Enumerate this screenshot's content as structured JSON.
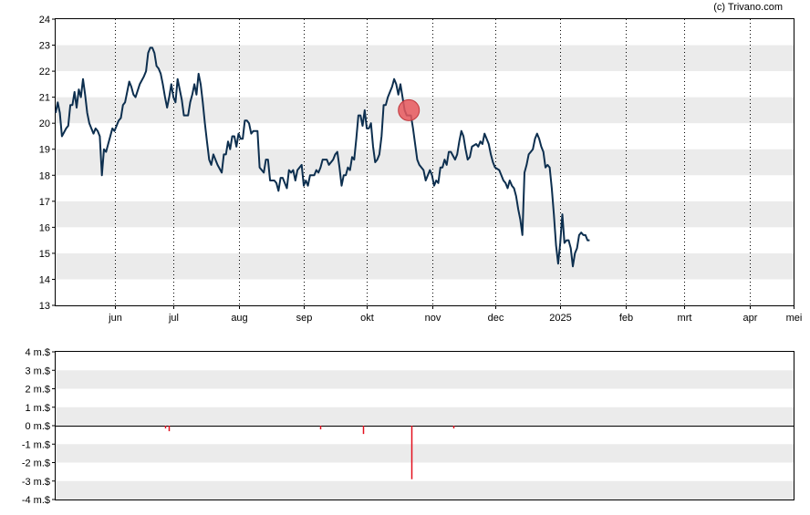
{
  "credit": "(c) Trivano.com",
  "colors": {
    "price_line": "#0d2f4f",
    "band": "#ebebeb",
    "grid": "#000000",
    "marker_fill": "#e8585d",
    "marker_stroke": "#c0383d",
    "insider_bar": "#e3101e",
    "zero_line": "#000000"
  },
  "chart_data": [
    {
      "type": "line",
      "ylim": [
        13,
        24
      ],
      "y_ticks": [
        "13",
        "14",
        "15",
        "16",
        "17",
        "18",
        "19",
        "20",
        "21",
        "22",
        "23",
        "24"
      ],
      "x_range_days": [
        0,
        351
      ],
      "x_ticks": [
        {
          "label": "jun",
          "day": 28
        },
        {
          "label": "jul",
          "day": 56
        },
        {
          "label": "aug",
          "day": 87
        },
        {
          "label": "sep",
          "day": 118
        },
        {
          "label": "okt",
          "day": 148
        },
        {
          "label": "nov",
          "day": 179
        },
        {
          "label": "dec",
          "day": 209
        },
        {
          "label": "2025",
          "day": 240
        },
        {
          "label": "feb",
          "day": 271
        },
        {
          "label": "mrt",
          "day": 299
        },
        {
          "label": "apr",
          "day": 330
        },
        {
          "label": "mei",
          "day": 351
        }
      ],
      "grid": "vertical dotted at month ticks, alternating horizontal bands",
      "series": [
        {
          "points": [
            [
              0,
              20.4
            ],
            [
              1,
              20.8
            ],
            [
              2,
              20.4
            ],
            [
              3,
              19.5
            ],
            [
              5,
              19.8
            ],
            [
              6,
              19.9
            ],
            [
              7,
              20.7
            ],
            [
              8,
              20.7
            ],
            [
              9,
              21.2
            ],
            [
              10,
              20.6
            ],
            [
              11,
              21.3
            ],
            [
              12,
              21.0
            ],
            [
              13,
              21.7
            ],
            [
              14,
              21.1
            ],
            [
              15,
              20.4
            ],
            [
              16,
              20.0
            ],
            [
              18,
              19.6
            ],
            [
              19,
              19.8
            ],
            [
              20,
              19.7
            ],
            [
              21,
              19.5
            ],
            [
              22,
              18.0
            ],
            [
              23,
              19.0
            ],
            [
              24,
              18.9
            ],
            [
              25,
              19.2
            ],
            [
              26,
              19.5
            ],
            [
              27,
              19.8
            ],
            [
              28,
              19.7
            ],
            [
              30,
              20.1
            ],
            [
              31,
              20.2
            ],
            [
              32,
              20.7
            ],
            [
              33,
              20.8
            ],
            [
              34,
              21.2
            ],
            [
              35,
              21.6
            ],
            [
              36,
              21.4
            ],
            [
              37,
              21.1
            ],
            [
              38,
              21.0
            ],
            [
              40,
              21.5
            ],
            [
              42,
              21.8
            ],
            [
              43,
              22.0
            ],
            [
              44,
              22.7
            ],
            [
              45,
              22.9
            ],
            [
              46,
              22.9
            ],
            [
              47,
              22.7
            ],
            [
              48,
              22.2
            ],
            [
              49,
              22.1
            ],
            [
              50,
              21.9
            ],
            [
              51,
              21.5
            ],
            [
              52,
              21.0
            ],
            [
              53,
              20.6
            ],
            [
              54,
              21.0
            ],
            [
              55,
              21.5
            ],
            [
              56,
              21.0
            ],
            [
              57,
              20.8
            ],
            [
              58,
              21.7
            ],
            [
              60,
              20.9
            ],
            [
              61,
              20.3
            ],
            [
              63,
              20.3
            ],
            [
              64,
              20.8
            ],
            [
              65,
              21.1
            ],
            [
              66,
              21.5
            ],
            [
              67,
              21.1
            ],
            [
              68,
              21.9
            ],
            [
              69,
              21.5
            ],
            [
              70,
              20.8
            ],
            [
              71,
              20.0
            ],
            [
              72,
              19.3
            ],
            [
              73,
              18.6
            ],
            [
              74,
              18.4
            ],
            [
              75,
              18.8
            ],
            [
              77,
              18.4
            ],
            [
              79,
              18.1
            ],
            [
              80,
              18.8
            ],
            [
              81,
              18.8
            ],
            [
              82,
              19.3
            ],
            [
              83,
              19.0
            ],
            [
              84,
              19.5
            ],
            [
              85,
              19.5
            ],
            [
              86,
              19.1
            ],
            [
              87,
              19.6
            ],
            [
              88,
              19.4
            ],
            [
              89,
              19.4
            ],
            [
              90,
              20.1
            ],
            [
              91,
              20.1
            ],
            [
              92,
              20.0
            ],
            [
              93,
              19.6
            ],
            [
              94,
              19.7
            ],
            [
              96,
              19.7
            ],
            [
              97,
              18.3
            ],
            [
              99,
              18.1
            ],
            [
              100,
              18.6
            ],
            [
              101,
              18.6
            ],
            [
              102,
              17.8
            ],
            [
              104,
              17.8
            ],
            [
              105,
              17.7
            ],
            [
              106,
              17.4
            ],
            [
              107,
              17.9
            ],
            [
              108,
              17.9
            ],
            [
              110,
              17.5
            ],
            [
              111,
              18.2
            ],
            [
              112,
              18.1
            ],
            [
              113,
              18.2
            ],
            [
              114,
              17.8
            ],
            [
              115,
              18.2
            ],
            [
              116,
              18.3
            ],
            [
              117,
              18.4
            ],
            [
              118,
              17.6
            ],
            [
              119,
              17.8
            ],
            [
              120,
              17.6
            ],
            [
              121,
              18.0
            ],
            [
              123,
              18.0
            ],
            [
              124,
              18.2
            ],
            [
              125,
              18.1
            ],
            [
              126,
              18.3
            ],
            [
              127,
              18.6
            ],
            [
              129,
              18.6
            ],
            [
              130,
              18.4
            ],
            [
              132,
              18.6
            ],
            [
              133,
              18.8
            ],
            [
              134,
              18.9
            ],
            [
              135,
              18.3
            ],
            [
              136,
              17.6
            ],
            [
              137,
              18.0
            ],
            [
              138,
              18.0
            ],
            [
              139,
              18.3
            ],
            [
              140,
              18.2
            ],
            [
              141,
              18.7
            ],
            [
              142,
              18.6
            ],
            [
              143,
              19.4
            ],
            [
              144,
              20.3
            ],
            [
              145,
              20.3
            ],
            [
              146,
              19.9
            ],
            [
              147,
              20.5
            ],
            [
              148,
              19.8
            ],
            [
              149,
              19.8
            ],
            [
              150,
              20.0
            ],
            [
              151,
              19.1
            ],
            [
              152,
              18.5
            ],
            [
              153,
              18.6
            ],
            [
              154,
              18.8
            ],
            [
              155,
              19.5
            ],
            [
              156,
              20.7
            ],
            [
              157,
              20.7
            ],
            [
              158,
              21.0
            ],
            [
              159,
              21.2
            ],
            [
              160,
              21.4
            ],
            [
              161,
              21.7
            ],
            [
              162,
              21.5
            ],
            [
              163,
              21.1
            ],
            [
              164,
              21.5
            ],
            [
              165,
              21.0
            ],
            [
              166,
              20.5
            ],
            [
              167,
              20.3
            ],
            [
              169,
              20.3
            ],
            [
              170,
              19.8
            ],
            [
              171,
              19.2
            ],
            [
              172,
              18.6
            ],
            [
              173,
              18.4
            ],
            [
              175,
              18.2
            ],
            [
              176,
              17.8
            ],
            [
              178,
              18.2
            ],
            [
              179,
              18.0
            ],
            [
              180,
              17.6
            ],
            [
              181,
              17.8
            ],
            [
              182,
              17.7
            ],
            [
              183,
              18.3
            ],
            [
              184,
              18.3
            ],
            [
              185,
              18.6
            ],
            [
              186,
              18.4
            ],
            [
              187,
              18.9
            ],
            [
              188,
              18.9
            ],
            [
              190,
              18.6
            ],
            [
              191,
              18.8
            ],
            [
              192,
              19.3
            ],
            [
              193,
              19.7
            ],
            [
              194,
              19.5
            ],
            [
              195,
              19.0
            ],
            [
              196,
              18.6
            ],
            [
              197,
              18.7
            ],
            [
              198,
              19.1
            ],
            [
              200,
              19.2
            ],
            [
              201,
              19.1
            ],
            [
              202,
              19.3
            ],
            [
              203,
              19.2
            ],
            [
              204,
              19.6
            ],
            [
              205,
              19.4
            ],
            [
              206,
              19.2
            ],
            [
              207,
              18.8
            ],
            [
              208,
              18.5
            ],
            [
              209,
              18.3
            ],
            [
              211,
              18.2
            ],
            [
              212,
              18.0
            ],
            [
              213,
              17.8
            ],
            [
              214,
              17.7
            ],
            [
              215,
              17.5
            ],
            [
              216,
              17.8
            ],
            [
              217,
              17.6
            ],
            [
              218,
              17.5
            ],
            [
              219,
              17.2
            ],
            [
              220,
              16.7
            ],
            [
              221,
              16.3
            ],
            [
              222,
              15.7
            ],
            [
              223,
              18.1
            ],
            [
              224,
              18.4
            ],
            [
              225,
              18.8
            ],
            [
              226,
              18.9
            ],
            [
              227,
              19.0
            ],
            [
              228,
              19.4
            ],
            [
              229,
              19.6
            ],
            [
              230,
              19.4
            ],
            [
              231,
              19.1
            ],
            [
              232,
              18.9
            ],
            [
              233,
              18.3
            ],
            [
              234,
              18.4
            ],
            [
              235,
              18.3
            ],
            [
              236,
              17.5
            ],
            [
              237,
              16.5
            ],
            [
              238,
              15.3
            ],
            [
              239,
              14.6
            ],
            [
              240,
              15.4
            ],
            [
              241,
              16.5
            ],
            [
              242,
              15.4
            ],
            [
              243,
              15.5
            ],
            [
              244,
              15.5
            ],
            [
              245,
              15.2
            ],
            [
              246,
              14.5
            ],
            [
              247,
              15.0
            ],
            [
              248,
              15.2
            ],
            [
              249,
              15.7
            ],
            [
              250,
              15.8
            ],
            [
              251,
              15.7
            ],
            [
              252,
              15.7
            ],
            [
              253,
              15.5
            ],
            [
              254,
              15.5
            ]
          ]
        }
      ],
      "markers": [
        {
          "x": 168,
          "y": 20.5,
          "shape": "circle"
        }
      ]
    },
    {
      "type": "bar",
      "ylim": [
        -4,
        4
      ],
      "y_ticks": [
        "4 m.$",
        "3 m.$",
        "2 m.$",
        "1 m.$",
        "0 m.$",
        "-1 m.$",
        "-2 m.$",
        "-3 m.$",
        "-4 m.$"
      ],
      "grid": "alternating horizontal bands",
      "unit": "m.$",
      "bars": [
        {
          "x": 52,
          "value": -0.15
        },
        {
          "x": 54,
          "value": -0.3
        },
        {
          "x": 126,
          "value": -0.2
        },
        {
          "x": 146,
          "value": -0.45
        },
        {
          "x": 169,
          "value": -2.9
        },
        {
          "x": 189,
          "value": -0.15
        }
      ]
    }
  ]
}
